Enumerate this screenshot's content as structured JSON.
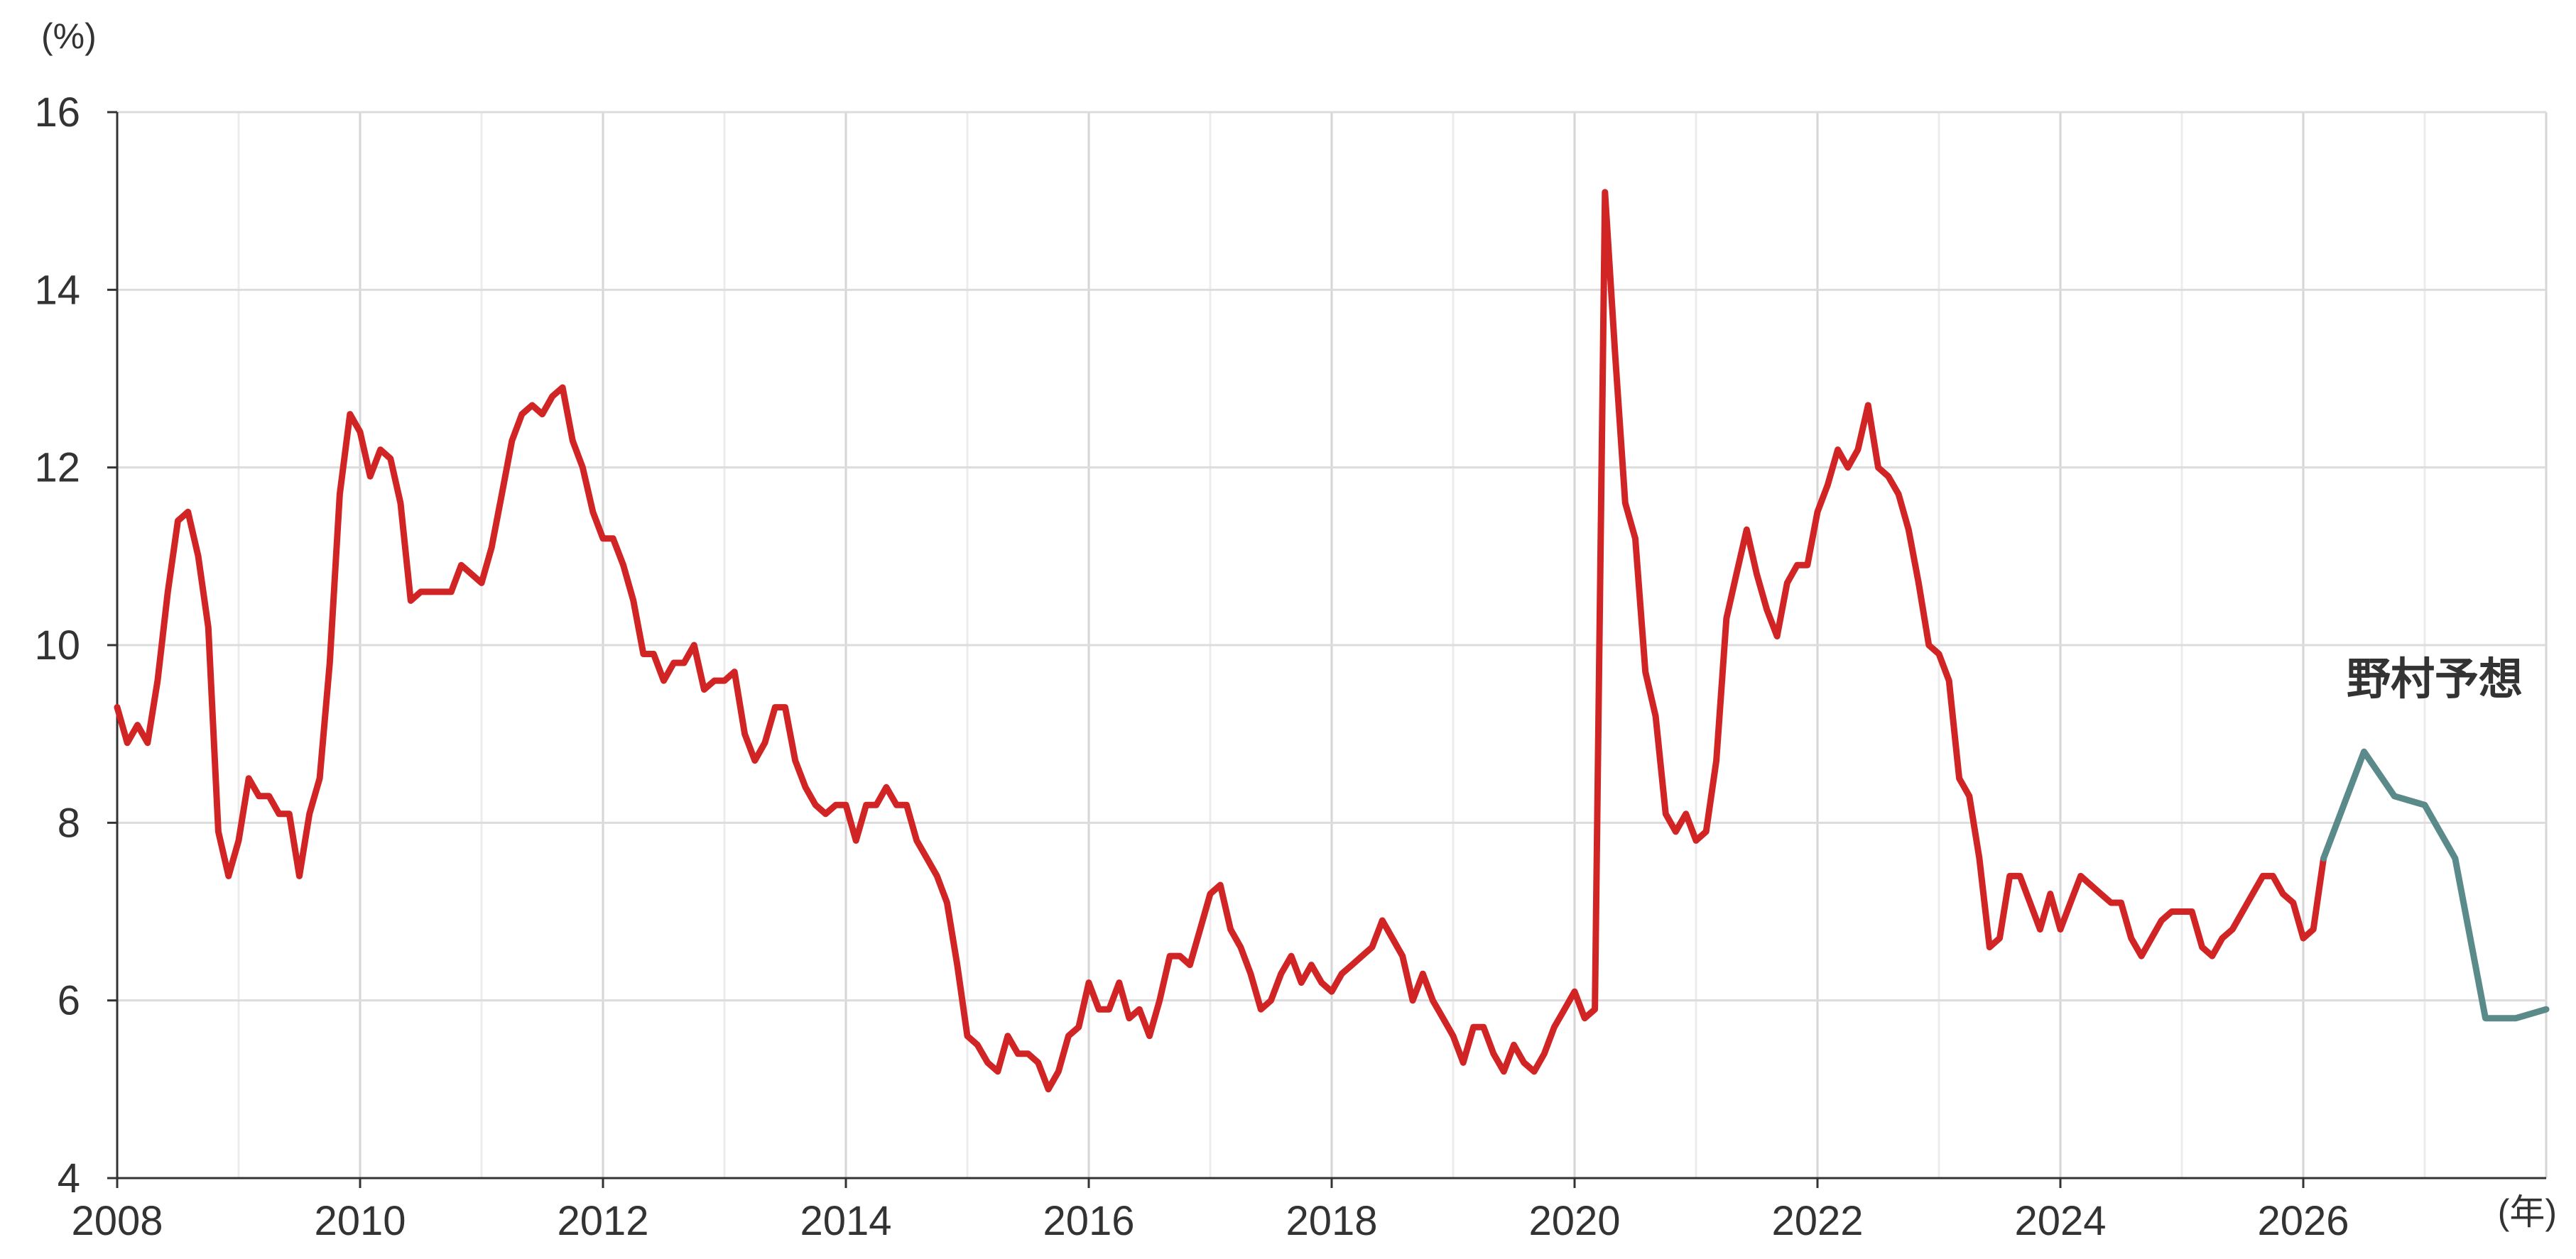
{
  "chart_data": {
    "type": "line",
    "title": "",
    "ylabel": "(%)",
    "xlabel": "(年)",
    "ylim": [
      4,
      16
    ],
    "xlim": [
      2008,
      2028
    ],
    "yticks": [
      "4",
      "6",
      "8",
      "10",
      "12",
      "14",
      "16"
    ],
    "xticks": [
      "2008",
      "2010",
      "2012",
      "2014",
      "2016",
      "2018",
      "2020",
      "2022",
      "2024",
      "2026"
    ],
    "grid": true,
    "annotation": "野村予想",
    "colors": {
      "actual": "#d12424",
      "forecast": "#5b8a8b",
      "grid": "#dcdcdc",
      "axis": "#333333"
    },
    "series": [
      {
        "x": [
          2008.0,
          2008.083,
          2008.167,
          2008.25,
          2008.333,
          2008.417,
          2008.5,
          2008.583,
          2008.667,
          2008.75,
          2008.833,
          2008.917,
          2009.0,
          2009.083,
          2009.167,
          2009.25,
          2009.333,
          2009.417,
          2009.5,
          2009.583,
          2009.667,
          2009.75,
          2009.833,
          2009.917,
          2010.0,
          2010.083,
          2010.167,
          2010.25,
          2010.333,
          2010.417,
          2010.5,
          2010.583,
          2010.667,
          2010.75,
          2010.833,
          2010.917,
          2011.0,
          2011.083,
          2011.167,
          2011.25,
          2011.333,
          2011.417,
          2011.5,
          2011.583,
          2011.667,
          2011.75,
          2011.833,
          2011.917,
          2012.0,
          2012.083,
          2012.167,
          2012.25,
          2012.333,
          2012.417,
          2012.5,
          2012.583,
          2012.667,
          2012.75,
          2012.833,
          2012.917,
          2013.0,
          2013.083,
          2013.167,
          2013.25,
          2013.333,
          2013.417,
          2013.5,
          2013.583,
          2013.667,
          2013.75,
          2013.833,
          2013.917,
          2014.0,
          2014.083,
          2014.167,
          2014.25,
          2014.333,
          2014.417,
          2014.5,
          2014.583,
          2014.667,
          2014.75,
          2014.833,
          2014.917,
          2015.0,
          2015.083,
          2015.167,
          2015.25,
          2015.333,
          2015.417,
          2015.5,
          2015.583,
          2015.667,
          2015.75,
          2015.833,
          2015.917,
          2016.0,
          2016.083,
          2016.167,
          2016.25,
          2016.333,
          2016.417,
          2016.5,
          2016.583,
          2016.667,
          2016.75,
          2016.833,
          2016.917,
          2017.0,
          2017.083,
          2017.167,
          2017.25,
          2017.333,
          2017.417,
          2017.5,
          2017.583,
          2017.667,
          2017.75,
          2017.833,
          2017.917,
          2018.0,
          2018.083,
          2018.167,
          2018.25,
          2018.333,
          2018.417,
          2018.5,
          2018.583,
          2018.667,
          2018.75,
          2018.833,
          2018.917,
          2019.0,
          2019.083,
          2019.167,
          2019.25,
          2019.333,
          2019.417,
          2019.5,
          2019.583,
          2019.667,
          2019.75,
          2019.833,
          2019.917,
          2020.0,
          2020.083,
          2020.167,
          2020.25,
          2020.333,
          2020.417,
          2020.5,
          2020.583,
          2020.667,
          2020.75,
          2020.833,
          2020.917,
          2021.0,
          2021.083,
          2021.167,
          2021.25,
          2021.333,
          2021.417,
          2021.5,
          2021.583,
          2021.667,
          2021.75,
          2021.833,
          2021.917,
          2022.0,
          2022.083,
          2022.167,
          2022.25,
          2022.333,
          2022.417,
          2022.5,
          2022.583,
          2022.667,
          2022.75,
          2022.833,
          2022.917,
          2023.0,
          2023.083,
          2023.167,
          2023.25,
          2023.333,
          2023.417,
          2023.5,
          2023.583,
          2023.667,
          2023.75,
          2023.833,
          2023.917,
          2024.0,
          2024.083,
          2024.167,
          2024.25,
          2024.333,
          2024.417,
          2024.5,
          2024.583,
          2024.667,
          2024.75,
          2024.833,
          2024.917,
          2025.0,
          2025.083,
          2025.167,
          2025.25,
          2025.333,
          2025.417,
          2025.5,
          2025.583,
          2025.667,
          2025.75,
          2025.833,
          2025.917,
          2026.0,
          2026.083,
          2026.167
        ],
        "values": [
          9.3,
          8.9,
          9.1,
          8.9,
          9.6,
          10.6,
          11.4,
          11.5,
          11.0,
          10.2,
          7.9,
          7.4,
          7.8,
          8.5,
          8.3,
          8.3,
          8.1,
          8.1,
          7.4,
          8.1,
          8.5,
          9.8,
          11.7,
          12.6,
          12.4,
          11.9,
          12.2,
          12.1,
          11.6,
          10.5,
          10.6,
          10.6,
          10.6,
          10.6,
          10.9,
          10.8,
          10.7,
          11.1,
          11.7,
          12.3,
          12.6,
          12.7,
          12.6,
          12.8,
          12.9,
          12.3,
          12.0,
          11.5,
          11.2,
          11.2,
          10.9,
          10.5,
          9.9,
          9.9,
          9.6,
          9.8,
          9.8,
          10.0,
          9.5,
          9.6,
          9.6,
          9.7,
          9.0,
          8.7,
          8.9,
          9.3,
          9.3,
          8.7,
          8.4,
          8.2,
          8.1,
          8.2,
          8.2,
          7.8,
          8.2,
          8.2,
          8.4,
          8.2,
          8.2,
          7.8,
          7.6,
          7.4,
          7.1,
          6.4,
          5.6,
          5.5,
          5.3,
          5.2,
          5.6,
          5.4,
          5.4,
          5.3,
          5.0,
          5.2,
          5.6,
          5.7,
          6.2,
          5.9,
          5.9,
          6.2,
          5.8,
          5.9,
          5.6,
          6.0,
          6.5,
          6.5,
          6.4,
          6.8,
          7.2,
          7.3,
          6.8,
          6.6,
          6.3,
          5.9,
          6.0,
          6.3,
          6.5,
          6.2,
          6.4,
          6.2,
          6.1,
          6.3,
          6.4,
          6.5,
          6.6,
          6.9,
          6.7,
          6.5,
          6.0,
          6.3,
          6.0,
          5.8,
          5.6,
          5.3,
          5.7,
          5.7,
          5.4,
          5.2,
          5.5,
          5.3,
          5.2,
          5.4,
          5.7,
          5.9,
          6.1,
          5.8,
          5.9,
          15.1,
          13.3,
          11.6,
          11.2,
          9.7,
          9.2,
          8.1,
          7.9,
          8.1,
          7.8,
          7.9,
          8.7,
          10.3,
          10.8,
          11.3,
          10.8,
          10.4,
          10.1,
          10.7,
          10.9,
          10.9,
          11.5,
          11.8,
          12.2,
          12.0,
          12.2,
          12.7,
          12.0,
          11.9,
          11.7,
          11.3,
          10.7,
          10.0,
          9.9,
          9.6,
          8.5,
          8.3,
          7.6,
          6.6,
          6.7,
          7.4,
          7.4,
          7.1,
          6.8,
          7.2,
          6.8,
          7.1,
          7.4,
          7.3,
          7.2,
          7.1,
          7.1,
          6.7,
          6.5,
          6.7,
          6.9,
          7.0,
          7.0,
          7.0,
          6.6,
          6.5,
          6.7,
          6.8,
          7.0,
          7.2,
          7.4,
          7.4,
          7.2,
          7.1,
          6.7,
          6.8,
          7.6
        ]
      },
      {
        "x": [
          2026.167,
          2026.5,
          2026.75,
          2027.0,
          2027.25,
          2027.5,
          2027.75,
          2028.0
        ],
        "values": [
          7.6,
          8.8,
          8.3,
          8.2,
          7.6,
          5.8,
          5.8,
          5.9
        ]
      }
    ]
  }
}
